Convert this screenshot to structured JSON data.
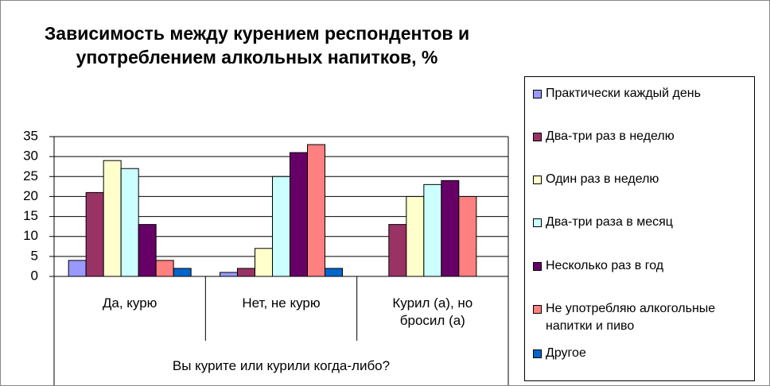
{
  "chart_data": {
    "type": "bar",
    "title": "Зависимость между курением респондентов и употреблением алкольных напитков, %",
    "x_label": "Вы курите или курили когда-либо?",
    "categories": [
      "Да, курю",
      "Нет, не курю",
      "Курил (а), но бросил (а)"
    ],
    "series": [
      {
        "name": "Практически каждый день",
        "color": "#9999ff",
        "values": [
          4,
          1,
          0
        ]
      },
      {
        "name": "Два-три раз в неделю",
        "color": "#993366",
        "values": [
          21,
          2,
          13
        ]
      },
      {
        "name": "Один раз в неделю",
        "color": "#ffffcc",
        "values": [
          29,
          7,
          20
        ]
      },
      {
        "name": "Два-три раза в месяц",
        "color": "#ccffff",
        "values": [
          27,
          25,
          23
        ]
      },
      {
        "name": "Несколько раз в год",
        "color": "#660066",
        "values": [
          13,
          31,
          24
        ]
      },
      {
        "name": "Не употребляю алкогольные напитки и пиво",
        "color": "#ff8080",
        "values": [
          4,
          33,
          20
        ]
      },
      {
        "name": "Другое",
        "color": "#0066cc",
        "values": [
          2,
          2,
          0
        ]
      }
    ],
    "ylim": [
      0,
      35
    ],
    "yticks": [
      0,
      5,
      10,
      15,
      20,
      25,
      30,
      35
    ],
    "grid": true,
    "legend": "right"
  }
}
